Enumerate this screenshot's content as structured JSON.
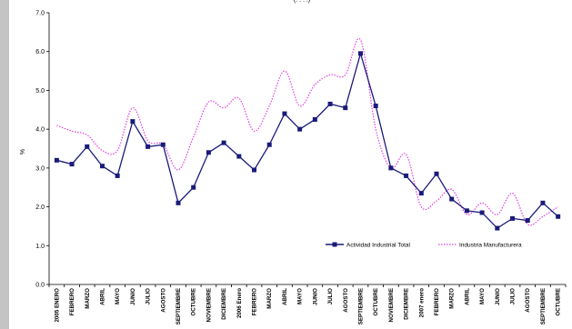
{
  "chart_data": {
    "type": "line",
    "title": "(. . . .)",
    "ylabel": "%",
    "ylim": [
      0,
      7
    ],
    "yticks": [
      "0.0",
      "1.0",
      "2.0",
      "3.0",
      "4.0",
      "5.0",
      "6.0",
      "7.0"
    ],
    "grid": false,
    "legend_position": "bottom-right",
    "categories": [
      "2005 ENERO",
      "FEBRERO",
      "MARZO",
      "ABRIL",
      "MAYO",
      "JUNIO",
      "JULIO",
      "AGOSTO",
      "SEPTIEMBRE",
      "OCTUBRE",
      "NOVIEMBRE",
      "DICIEMBRE",
      "2006 Enero",
      "FEBRERO",
      "MARZO",
      "ABRIL",
      "MAYO",
      "JUNIO",
      "JULIO",
      "AGOSTO",
      "SEPTIEMBRE",
      "OCTUBRE",
      "NOVIEMBRE",
      "DICIEMBRE",
      "2007 enero",
      "FEBRERO",
      "MARZO",
      "ABRIL",
      "MAYO",
      "JUNIO",
      "JULIO",
      "AGOSTO",
      "SEPTIEMBRE",
      "OCTUBRE"
    ],
    "series": [
      {
        "name": "Actividad Industrial Total",
        "color": "#1a1a7a",
        "style": "solid-square-markers",
        "values": [
          3.2,
          3.1,
          3.55,
          3.05,
          2.8,
          4.2,
          3.55,
          3.6,
          2.1,
          2.5,
          3.4,
          3.65,
          3.3,
          2.95,
          3.6,
          4.4,
          4.0,
          4.25,
          4.65,
          4.55,
          5.95,
          4.6,
          3.0,
          2.8,
          2.35,
          2.85,
          2.2,
          1.9,
          1.85,
          1.45,
          1.7,
          1.65,
          2.1,
          1.75
        ]
      },
      {
        "name": "Industria Manufacturera",
        "color": "#e040e0",
        "style": "dotted",
        "values": [
          4.1,
          3.95,
          3.85,
          3.45,
          3.45,
          4.55,
          3.7,
          3.6,
          2.95,
          3.8,
          4.7,
          4.55,
          4.8,
          3.95,
          4.6,
          5.5,
          4.6,
          5.15,
          5.4,
          5.4,
          6.3,
          4.0,
          3.0,
          3.35,
          2.0,
          2.15,
          2.45,
          1.8,
          2.1,
          1.8,
          2.35,
          1.55,
          1.75,
          2.0
        ]
      }
    ]
  }
}
